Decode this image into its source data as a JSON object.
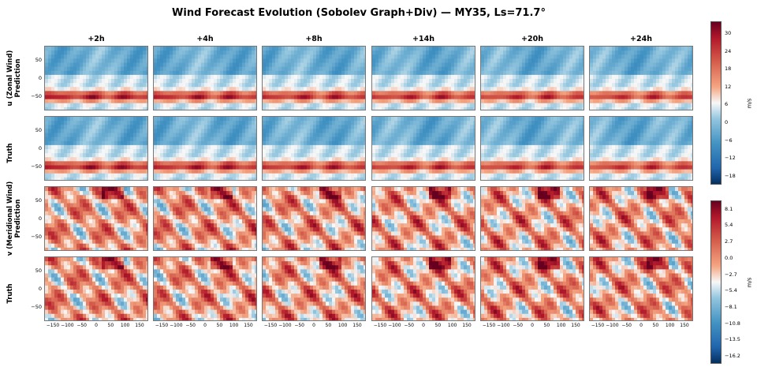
{
  "title": "Wind Forecast Evolution (Sobolev Graph+Div) — MY35, Ls=71.7°",
  "columns": [
    "+2h",
    "+4h",
    "+8h",
    "+14h",
    "+20h",
    "+24h"
  ],
  "rows": [
    {
      "label_line1": "u (Zonal Wind)",
      "label_line2": "Prediction",
      "variable": "u"
    },
    {
      "label_line1": "",
      "label_line2": "Truth",
      "variable": "u"
    },
    {
      "label_line1": "v (Meridional Wind)",
      "label_line2": "Prediction",
      "variable": "v"
    },
    {
      "label_line1": "",
      "label_line2": "Truth",
      "variable": "v"
    }
  ],
  "chart_data": {
    "type": "heatmap",
    "colormap": "RdBu_r",
    "x_ticks": [
      "−150",
      "−100",
      "−50",
      "0",
      "50",
      "100",
      "150"
    ],
    "x_values": [
      -150,
      -100,
      -50,
      0,
      50,
      100,
      150
    ],
    "y_ticks": [
      "50",
      "0",
      "−50"
    ],
    "y_values": [
      50,
      0,
      -50
    ],
    "xlim": [
      -180,
      180
    ],
    "ylim": [
      -90,
      90
    ],
    "colorbars": [
      {
        "variable": "u",
        "unit": "m/s",
        "range": [
          -21,
          34
        ],
        "ticks": [
          "30",
          "24",
          "18",
          "12",
          "6",
          "0",
          "−6",
          "−12",
          "−18"
        ],
        "tick_values": [
          30,
          24,
          18,
          12,
          6,
          0,
          -6,
          -12,
          -18
        ]
      },
      {
        "variable": "v",
        "unit": "m/s",
        "range": [
          -17.5,
          9.5
        ],
        "ticks": [
          "8.1",
          "5.4",
          "2.7",
          "0.0",
          "−2.7",
          "−5.4",
          "−8.1",
          "−10.8",
          "−13.5",
          "−16.2"
        ],
        "tick_values": [
          8.1,
          5.4,
          2.7,
          0.0,
          -2.7,
          -5.4,
          -8.1,
          -10.8,
          -13.5,
          -16.2
        ]
      }
    ]
  }
}
